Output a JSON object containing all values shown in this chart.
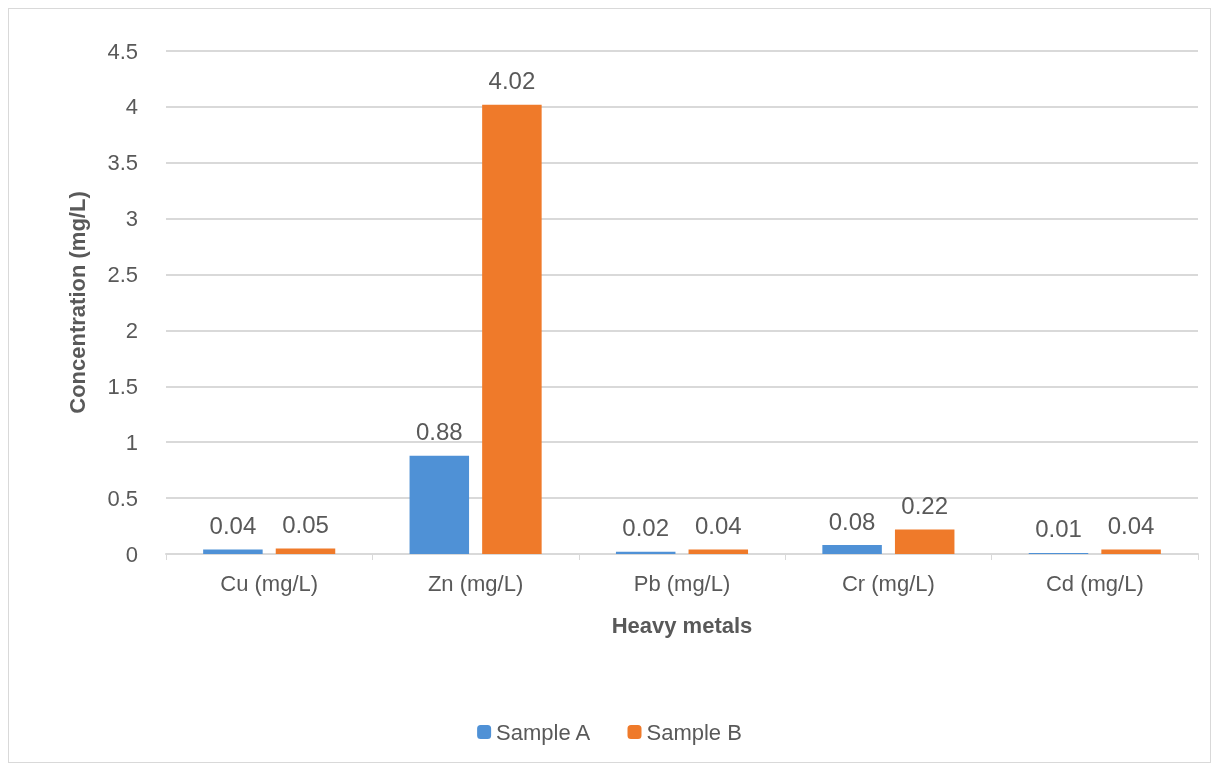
{
  "chart_data": {
    "type": "bar",
    "xlabel": "Heavy metals",
    "ylabel": "Concentration (mg/L)",
    "categories": [
      "Cu (mg/L)",
      "Zn (mg/L)",
      "Pb (mg/L)",
      "Cr (mg/L)",
      "Cd (mg/L)"
    ],
    "series": [
      {
        "name": "Sample A",
        "color": "#4f91d6",
        "values": [
          0.04,
          0.88,
          0.02,
          0.08,
          0.01
        ]
      },
      {
        "name": "Sample B",
        "color": "#ef7a2a",
        "values": [
          0.05,
          4.02,
          0.04,
          0.22,
          0.04
        ]
      }
    ],
    "ylim": [
      0,
      4.5
    ],
    "yticks": [
      0,
      0.5,
      1,
      1.5,
      2,
      2.5,
      3,
      3.5,
      4,
      4.5
    ],
    "grid": "y",
    "legend": "bottom",
    "data_labels": true
  }
}
